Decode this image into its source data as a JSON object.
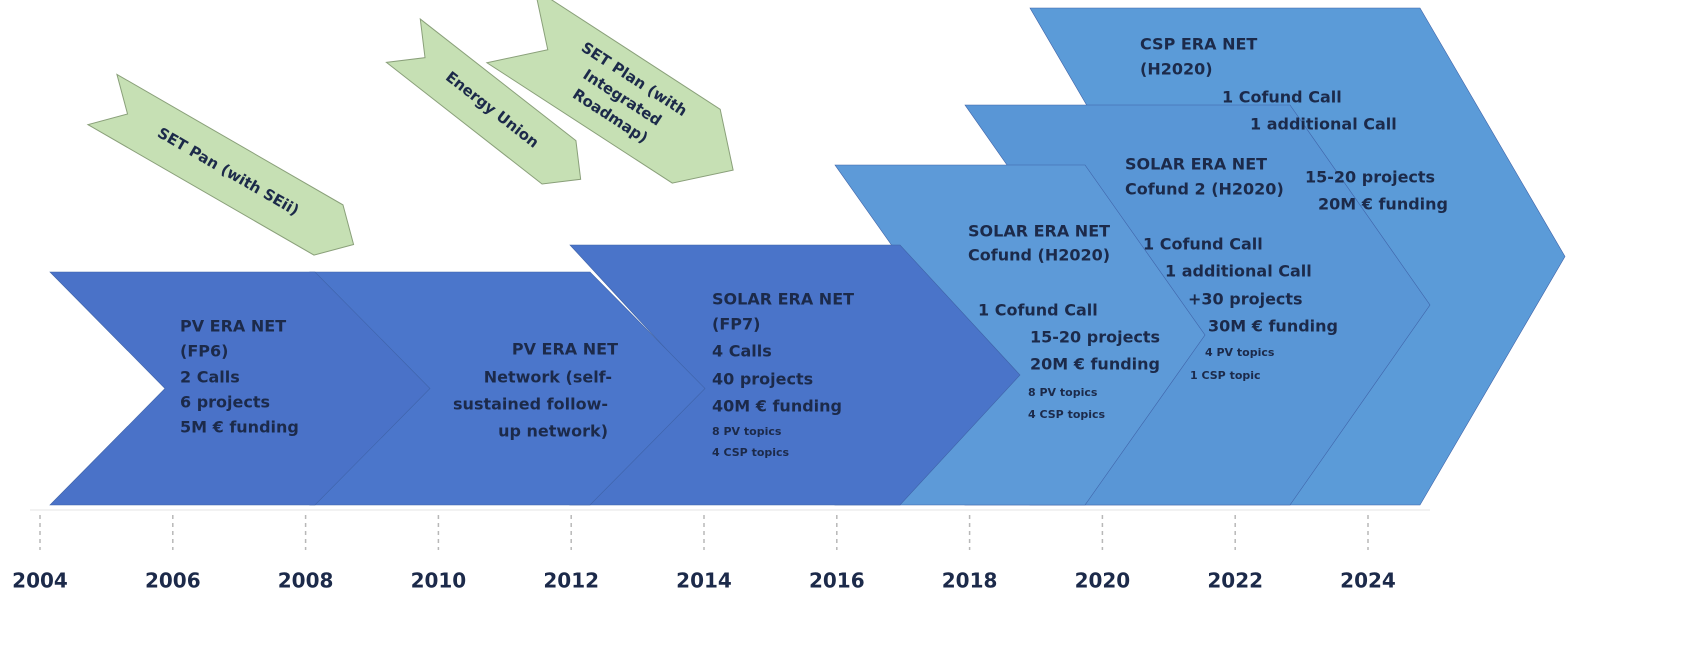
{
  "policy_arrows": [
    {
      "lines": [
        "SET Pan (with SEii)"
      ]
    },
    {
      "lines": [
        "Energy Union"
      ]
    },
    {
      "lines": [
        "SET Plan (with",
        "Integrated",
        "Roadmap)"
      ]
    }
  ],
  "phases": [
    {
      "lines": [
        "PV ERA NET",
        "(FP6)",
        "2 Calls",
        "6 projects",
        "5M € funding"
      ]
    },
    {
      "lines": [
        "PV ERA NET",
        "Network (self-",
        "sustained follow-",
        "up network)"
      ]
    },
    {
      "lines": [
        "SOLAR ERA NET",
        "(FP7)",
        "4 Calls",
        "40 projects",
        "40M € funding",
        "8 PV topics",
        "4 CSP topics"
      ]
    },
    {
      "lines": [
        "SOLAR ERA NET",
        "Cofund  (H2020)",
        "1 Cofund  Call",
        "15-20 projects",
        "20M € funding",
        "8 PV topics",
        "4 CSP topics"
      ]
    },
    {
      "lines": [
        "SOLAR ERA NET",
        "Cofund  2 (H2020)",
        "1 Cofund Call",
        "1 additional Call",
        "+30 projects",
        "30M € funding",
        "4 PV topics",
        "1 CSP topic"
      ]
    },
    {
      "lines": [
        "CSP ERA NET",
        "(H2020)",
        "1 Cofund  Call",
        "1 additional Call",
        "15-20 projects",
        "20M € funding"
      ]
    }
  ],
  "axis": {
    "years": [
      "2004",
      "2006",
      "2008",
      "2010",
      "2012",
      "2014",
      "2016",
      "2018",
      "2020",
      "2022",
      "2024"
    ]
  }
}
